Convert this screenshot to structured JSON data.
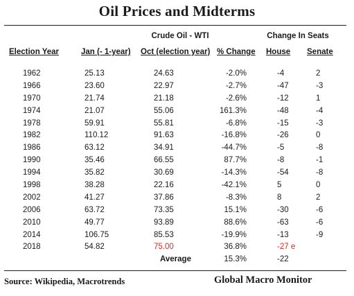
{
  "title": "Oil Prices and Midterms",
  "group_headers": {
    "crude": "Crude Oil - WTI",
    "seats": "Change In Seats"
  },
  "columns": {
    "year": "Election Year",
    "jan": "Jan (- 1-year)",
    "oct": "Oct (election year)",
    "change": "% Change",
    "house": "House",
    "senate": "Senate"
  },
  "rows": [
    {
      "year": "1962",
      "jan": "25.13",
      "oct": "24.63",
      "change": "-2.0%",
      "house": "-4",
      "senate": "2"
    },
    {
      "year": "1966",
      "jan": "23.60",
      "oct": "22.97",
      "change": "-2.7%",
      "house": "-47",
      "senate": "-3"
    },
    {
      "year": "1970",
      "jan": "21.74",
      "oct": "21.18",
      "change": "-2.6%",
      "house": "-12",
      "senate": "1"
    },
    {
      "year": "1974",
      "jan": "21.07",
      "oct": "55.06",
      "change": "161.3%",
      "house": "-48",
      "senate": "-4"
    },
    {
      "year": "1978",
      "jan": "59.91",
      "oct": "55.81",
      "change": "-6.8%",
      "house": "-15",
      "senate": "-3"
    },
    {
      "year": "1982",
      "jan": "110.12",
      "oct": "91.63",
      "change": "-16.8%",
      "house": "-26",
      "senate": "0"
    },
    {
      "year": "1986",
      "jan": "63.12",
      "oct": "34.91",
      "change": "-44.7%",
      "house": "-5",
      "senate": "-8"
    },
    {
      "year": "1990",
      "jan": "35.46",
      "oct": "66.55",
      "change": "87.7%",
      "house": "-8",
      "senate": "-1"
    },
    {
      "year": "1994",
      "jan": "35.82",
      "oct": "30.69",
      "change": "-14.3%",
      "house": "-54",
      "senate": "-8"
    },
    {
      "year": "1998",
      "jan": "38.28",
      "oct": "22.16",
      "change": "-42.1%",
      "house": "5",
      "senate": "0"
    },
    {
      "year": "2002",
      "jan": "41.27",
      "oct": "37.86",
      "change": "-8.3%",
      "house": "8",
      "senate": "2"
    },
    {
      "year": "2006",
      "jan": "63.72",
      "oct": "73.35",
      "change": "15.1%",
      "house": "-30",
      "senate": "-6"
    },
    {
      "year": "2010",
      "jan": "49.77",
      "oct": "93.89",
      "change": "88.6%",
      "house": "-63",
      "senate": "-6"
    },
    {
      "year": "2014",
      "jan": "106.75",
      "oct": "85.53",
      "change": "-19.9%",
      "house": "-13",
      "senate": "-9"
    },
    {
      "year": "2018",
      "jan": "54.82",
      "oct": "75.00",
      "change": "36.8%",
      "house": "-27 e",
      "senate": "",
      "oct_highlight": true,
      "house_highlight": true
    }
  ],
  "average": {
    "label": "Average",
    "change": "15.3%",
    "house": "-22"
  },
  "highlight_color": "#e8231d",
  "footer": {
    "source": "Source:  Wikipedia, Macrotrends",
    "brand": "Global Macro Monitor"
  }
}
